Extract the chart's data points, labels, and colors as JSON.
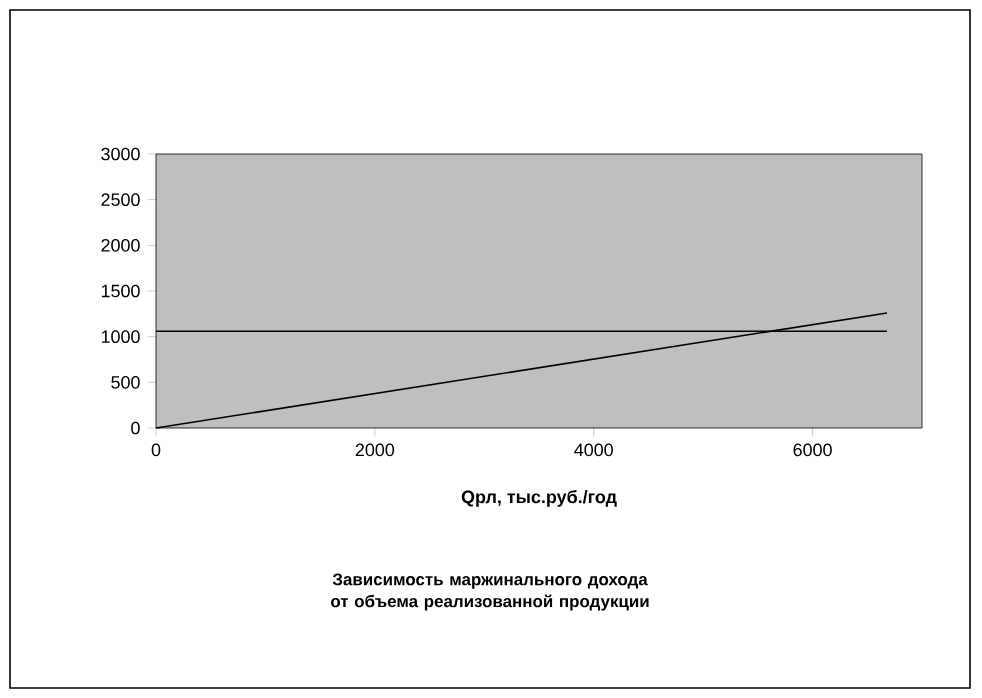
{
  "chart_data": {
    "type": "line",
    "title": "Зависимость маржинального дохода от объема реализованной продукции",
    "xlabel": "Qрл, тыс.руб./год",
    "xlim": [
      0,
      7000
    ],
    "xticks": [
      0,
      2000,
      4000,
      6000
    ],
    "ylim": [
      0,
      3000
    ],
    "yticks": [
      0,
      500,
      1000,
      1500,
      2000,
      2500,
      3000
    ],
    "x": [
      0,
      6680
    ],
    "grid": false,
    "marker": "none",
    "line_style": "solid",
    "series": [
      {
        "color": "#000000",
        "values": [
          1060,
          1060
        ]
      },
      {
        "color": "#000000",
        "values": [
          0,
          1260
        ]
      }
    ]
  }
}
